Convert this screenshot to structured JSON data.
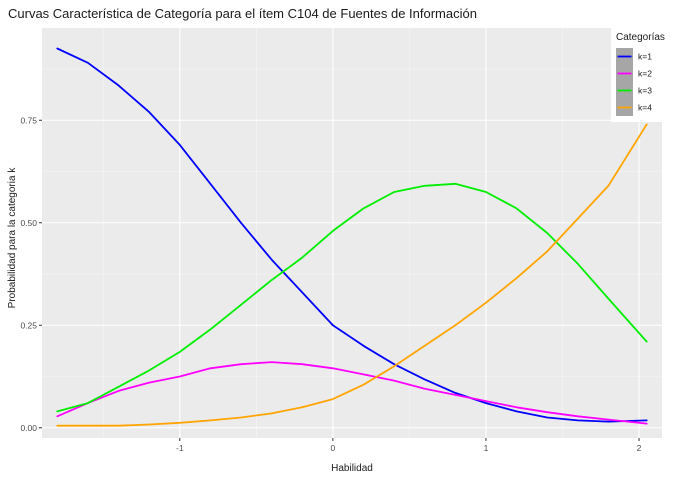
{
  "chart_data": {
    "type": "line",
    "title": "Curvas Característica de Categoría para el ítem C104 de Fuentes de Información",
    "xlabel": "Habilidad",
    "ylabel": "Probabilidad para la categoria k",
    "xlim": [
      -1.9,
      2.15
    ],
    "ylim": [
      -0.025,
      0.975
    ],
    "x_ticks": [
      -1,
      0,
      1,
      2
    ],
    "x_tick_labels": [
      "-1",
      "0",
      "1",
      "2"
    ],
    "y_ticks": [
      0,
      0.25,
      0.5,
      0.75
    ],
    "y_tick_labels": [
      "0.00",
      "0.25",
      "0.50",
      "0.75"
    ],
    "grid": true,
    "legend": {
      "title": "Categorías",
      "position": "top-right"
    },
    "x": [
      -1.8,
      -1.6,
      -1.4,
      -1.2,
      -1.0,
      -0.8,
      -0.6,
      -0.4,
      -0.2,
      0.0,
      0.2,
      0.4,
      0.6,
      0.8,
      1.0,
      1.2,
      1.4,
      1.6,
      1.8,
      2.05
    ],
    "series": [
      {
        "name": "k=1",
        "color": "#0000ff",
        "values": [
          0.925,
          0.89,
          0.835,
          0.77,
          0.69,
          0.595,
          0.5,
          0.41,
          0.33,
          0.25,
          0.2,
          0.155,
          0.118,
          0.085,
          0.06,
          0.04,
          0.025,
          0.018,
          0.015,
          0.018
        ]
      },
      {
        "name": "k=2",
        "color": "#ff00ff",
        "values": [
          0.028,
          0.06,
          0.09,
          0.11,
          0.125,
          0.145,
          0.155,
          0.16,
          0.155,
          0.145,
          0.13,
          0.115,
          0.095,
          0.08,
          0.065,
          0.05,
          0.038,
          0.028,
          0.02,
          0.01
        ]
      },
      {
        "name": "k=3",
        "color": "#00ee00",
        "values": [
          0.04,
          0.06,
          0.1,
          0.14,
          0.185,
          0.24,
          0.3,
          0.36,
          0.415,
          0.48,
          0.535,
          0.575,
          0.59,
          0.595,
          0.575,
          0.535,
          0.475,
          0.4,
          0.315,
          0.21
        ]
      },
      {
        "name": "k=4",
        "color": "#ffa500",
        "values": [
          0.005,
          0.005,
          0.005,
          0.008,
          0.012,
          0.018,
          0.025,
          0.035,
          0.05,
          0.07,
          0.105,
          0.15,
          0.2,
          0.25,
          0.305,
          0.365,
          0.43,
          0.51,
          0.59,
          0.74
        ]
      }
    ]
  }
}
